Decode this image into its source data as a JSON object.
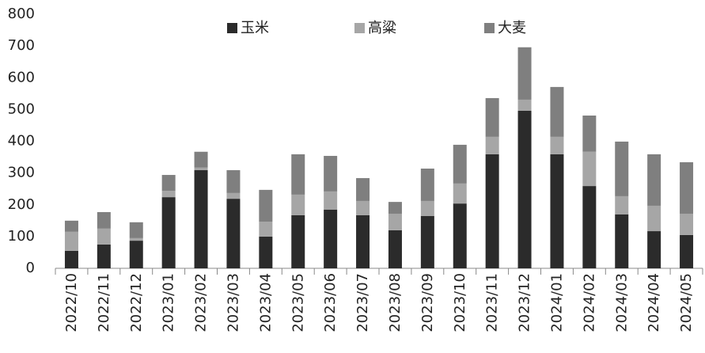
{
  "chart_data": {
    "type": "stacked-bar",
    "categories": [
      "2022/10",
      "2022/11",
      "2022/12",
      "2023/01",
      "2023/02",
      "2023/03",
      "2023/04",
      "2023/05",
      "2023/06",
      "2023/07",
      "2023/08",
      "2023/09",
      "2023/10",
      "2023/11",
      "2023/12",
      "2024/01",
      "2024/02",
      "2024/03",
      "2024/04",
      "2024/05"
    ],
    "series": [
      {
        "name": "玉米",
        "color": "#2b2b2b",
        "values": [
          55,
          75,
          87,
          224,
          309,
          219,
          100,
          167,
          185,
          167,
          120,
          165,
          204,
          359,
          496,
          359,
          259,
          170,
          117,
          105
        ]
      },
      {
        "name": "高粱",
        "color": "#a6a6a6",
        "values": [
          60,
          50,
          8,
          20,
          8,
          18,
          47,
          65,
          57,
          45,
          52,
          47,
          63,
          55,
          35,
          55,
          108,
          57,
          80,
          67
        ]
      },
      {
        "name": "大麦",
        "color": "#7f7f7f",
        "values": [
          35,
          52,
          50,
          50,
          50,
          72,
          100,
          127,
          112,
          72,
          37,
          102,
          122,
          122,
          165,
          157,
          114,
          172,
          162,
          162
        ]
      }
    ],
    "ylim": [
      0,
      800
    ],
    "yticks": [
      0,
      100,
      200,
      300,
      400,
      500,
      600,
      700,
      800
    ],
    "legend": "top"
  }
}
